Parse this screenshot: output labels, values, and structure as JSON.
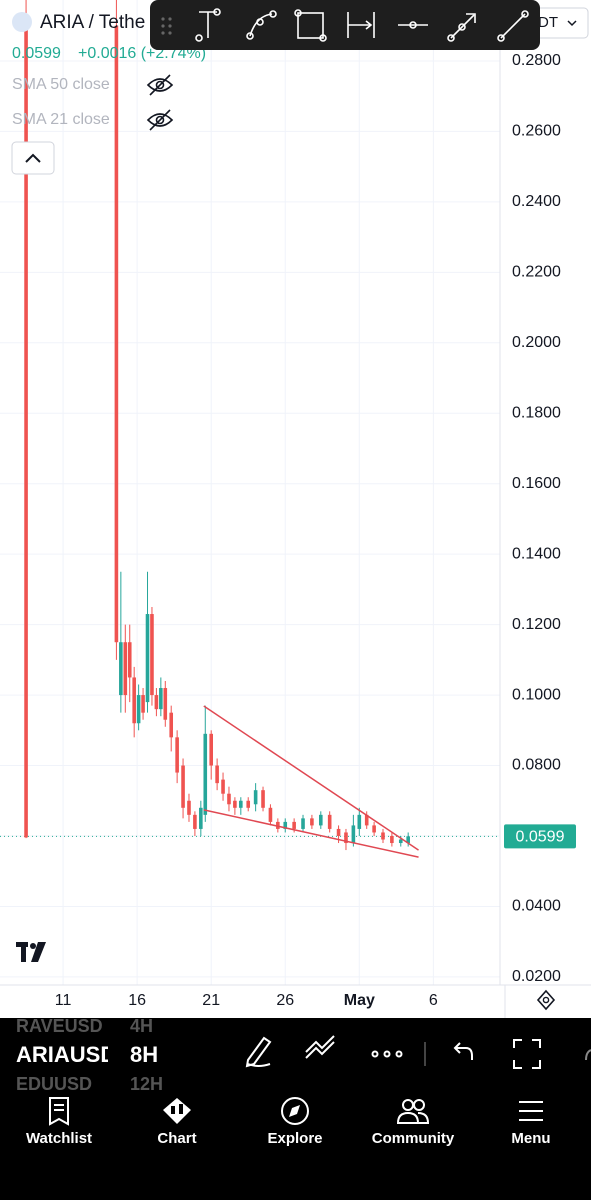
{
  "header": {
    "symbol": "ARIA / Tethe",
    "change": "+0.0016 (+2.74%)",
    "quote_selector": "DT"
  },
  "indicators": [
    "SMA 50 close",
    "SMA 21 close"
  ],
  "chart_data": {
    "type": "candlestick",
    "interval_candles": "8H",
    "xlim": [
      6.74,
      40.5
    ],
    "ylim": [
      0.0177,
      0.2973
    ],
    "xticks": [
      11,
      16,
      21,
      26,
      {
        "value": 31,
        "label": "May"
      },
      {
        "value": 36,
        "label": "6"
      }
    ],
    "yticks": [
      {
        "value": 0.28,
        "label": "0.2800"
      },
      {
        "value": 0.26,
        "label": "0.2600"
      },
      {
        "value": 0.24,
        "label": "0.2400"
      },
      {
        "value": 0.22,
        "label": "0.2200"
      },
      {
        "value": 0.2,
        "label": "0.2000"
      },
      {
        "value": 0.18,
        "label": "0.1800"
      },
      {
        "value": 0.16,
        "label": "0.1600"
      },
      {
        "value": 0.14,
        "label": "0.1400"
      },
      {
        "value": 0.12,
        "label": "0.1200"
      },
      {
        "value": 0.1,
        "label": "0.1000"
      },
      {
        "value": 0.08,
        "label": "0.0800"
      },
      {
        "value": 0.06,
        "label": "0.0600"
      },
      {
        "value": 0.04,
        "label": "0.0400"
      },
      {
        "value": 0.02,
        "label": "0.0200"
      }
    ],
    "grid": true,
    "up_color": "#26a69a",
    "down_color": "#ef5350",
    "candles": {
      "x": [
        8.5,
        14.6,
        14.9,
        15.2,
        15.5,
        15.8,
        16.1,
        16.4,
        16.7,
        17.0,
        17.3,
        17.6,
        17.9,
        18.3,
        18.7,
        19.1,
        19.5,
        19.9,
        20.3,
        20.6,
        21.0,
        21.4,
        21.8,
        22.2,
        22.6,
        23.0,
        23.5,
        24.0,
        24.5,
        25.0,
        25.5,
        26.0,
        26.6,
        27.2,
        27.8,
        28.4,
        29.0,
        29.6,
        30.1,
        30.6,
        31.0,
        31.5,
        32.0,
        32.6,
        33.2,
        33.8,
        34.3
      ],
      "open": [
        0.29,
        0.29,
        0.1,
        0.115,
        0.115,
        0.105,
        0.092,
        0.1,
        0.098,
        0.123,
        0.1,
        0.096,
        0.102,
        0.095,
        0.088,
        0.08,
        0.07,
        0.066,
        0.062,
        0.066,
        0.089,
        0.08,
        0.076,
        0.072,
        0.07,
        0.068,
        0.07,
        0.069,
        0.073,
        0.068,
        0.064,
        0.062,
        0.064,
        0.062,
        0.065,
        0.063,
        0.066,
        0.062,
        0.061,
        0.058,
        0.062,
        0.066,
        0.063,
        0.061,
        0.06,
        0.058,
        0.058
      ],
      "high": [
        0.3,
        0.3,
        0.135,
        0.12,
        0.12,
        0.108,
        0.103,
        0.102,
        0.135,
        0.125,
        0.102,
        0.105,
        0.104,
        0.097,
        0.09,
        0.082,
        0.072,
        0.067,
        0.07,
        0.097,
        0.09,
        0.082,
        0.078,
        0.074,
        0.071,
        0.071,
        0.071,
        0.075,
        0.074,
        0.069,
        0.065,
        0.065,
        0.065,
        0.066,
        0.066,
        0.067,
        0.067,
        0.063,
        0.062,
        0.066,
        0.068,
        0.067,
        0.064,
        0.062,
        0.061,
        0.06,
        0.061
      ],
      "low": [
        0.0594,
        0.11,
        0.095,
        0.095,
        0.098,
        0.088,
        0.09,
        0.093,
        0.095,
        0.097,
        0.094,
        0.094,
        0.091,
        0.084,
        0.075,
        0.065,
        0.064,
        0.06,
        0.06,
        0.064,
        0.076,
        0.073,
        0.07,
        0.067,
        0.066,
        0.066,
        0.067,
        0.067,
        0.067,
        0.063,
        0.061,
        0.061,
        0.061,
        0.061,
        0.062,
        0.062,
        0.061,
        0.058,
        0.056,
        0.057,
        0.06,
        0.062,
        0.06,
        0.058,
        0.057,
        0.057,
        0.057
      ],
      "close": [
        0.0596,
        0.115,
        0.115,
        0.1,
        0.105,
        0.092,
        0.1,
        0.095,
        0.123,
        0.1,
        0.096,
        0.102,
        0.093,
        0.088,
        0.078,
        0.068,
        0.066,
        0.062,
        0.068,
        0.089,
        0.08,
        0.075,
        0.072,
        0.069,
        0.068,
        0.07,
        0.068,
        0.073,
        0.068,
        0.064,
        0.062,
        0.064,
        0.062,
        0.065,
        0.063,
        0.066,
        0.062,
        0.06,
        0.058,
        0.063,
        0.066,
        0.063,
        0.061,
        0.059,
        0.058,
        0.059,
        0.0599
      ]
    },
    "trendlines": [
      {
        "x": [
          20.5,
          35.0
        ],
        "y": [
          0.0969,
          0.056
        ]
      },
      {
        "x": [
          20.5,
          35.0
        ],
        "y": [
          0.0674,
          0.054
        ]
      }
    ],
    "trendline_color": "#e04852",
    "last_price": 0.0599,
    "last_price_color": "#22ab94"
  },
  "symbol_bar": [
    {
      "symbol": "RAVEUSD",
      "interval": "4H"
    },
    {
      "symbol": "ARIAUSD",
      "interval": "8H"
    },
    {
      "symbol": "EDUUSD",
      "interval": "12H"
    }
  ],
  "nav": [
    "Watchlist",
    "Chart",
    "Explore",
    "Community",
    "Menu"
  ]
}
